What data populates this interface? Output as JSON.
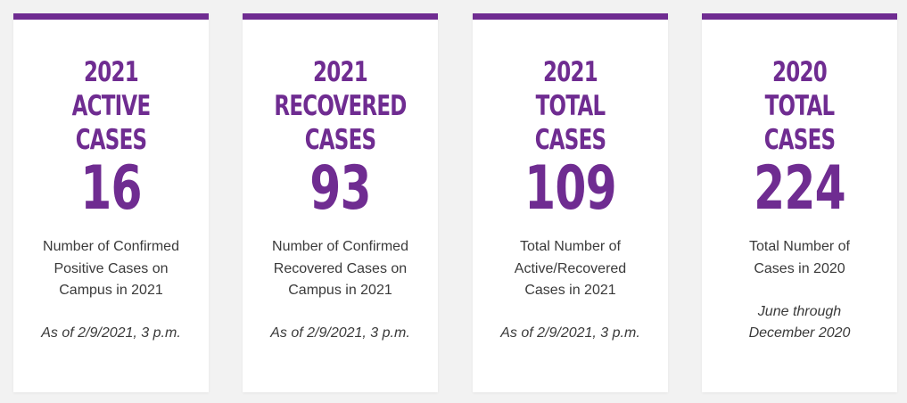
{
  "accent_color": "#6f2c91",
  "cards": [
    {
      "heading": [
        "2021",
        "ACTIVE",
        "CASES"
      ],
      "number": "16",
      "description": [
        "Number of Confirmed",
        "Positive Cases on",
        "Campus in 2021"
      ],
      "note": [
        "As of 2/9/2021, 3 p.m."
      ]
    },
    {
      "heading": [
        "2021",
        "RECOVERED",
        "CASES"
      ],
      "number": "93",
      "description": [
        "Number of Confirmed",
        "Recovered Cases on",
        "Campus in 2021"
      ],
      "note": [
        "As of 2/9/2021, 3 p.m."
      ]
    },
    {
      "heading": [
        "2021",
        "TOTAL",
        "CASES"
      ],
      "number": "109",
      "description": [
        "Total Number of",
        "Active/Recovered",
        "Cases in 2021"
      ],
      "note": [
        "As of 2/9/2021, 3 p.m."
      ]
    },
    {
      "heading": [
        "2020",
        "TOTAL",
        "CASES"
      ],
      "number": "224",
      "description": [
        "Total Number of",
        "Cases in 2020"
      ],
      "note": [
        "June through",
        "December 2020"
      ]
    }
  ]
}
